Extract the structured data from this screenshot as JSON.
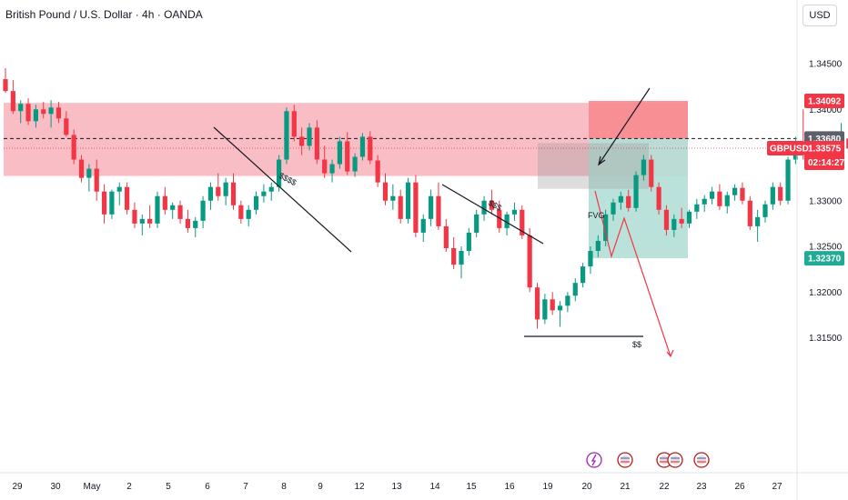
{
  "header": {
    "title": "British Pound / U.S. Dollar · 4h · OANDA",
    "currency": "USD"
  },
  "price_tags": {
    "symbol": "GBPUSD",
    "countdown": "02:14:27"
  },
  "chart_data": {
    "type": "candlestick",
    "symbol": "GBPUSD",
    "ylim": [
      1.315,
      1.347
    ],
    "y_ticks": [
      {
        "value": 1.345,
        "label": "1.34500"
      },
      {
        "value": 1.34,
        "label": "1.34000"
      },
      {
        "value": 1.33,
        "label": "1.33000"
      },
      {
        "value": 1.325,
        "label": "1.32500"
      },
      {
        "value": 1.32,
        "label": "1.32000"
      },
      {
        "value": 1.315,
        "label": "1.31500"
      }
    ],
    "x_ticks": [
      "29",
      "30",
      "May",
      "2",
      "5",
      "6",
      "7",
      "8",
      "9",
      "12",
      "13",
      "14",
      "15",
      "16",
      "19",
      "20",
      "21",
      "22",
      "23",
      "26",
      "27"
    ],
    "price_labels": [
      {
        "value": 1.34092,
        "label": "1.34092",
        "color": "#f23645"
      },
      {
        "value": 1.3368,
        "label": "1.33680",
        "color": "#5d606b"
      },
      {
        "value": 1.33575,
        "label": "1.33575",
        "color": "#f23645"
      },
      {
        "value": 1.3237,
        "label": "1.32370",
        "color": "#22ab94"
      }
    ],
    "zones": [
      {
        "kind": "supply",
        "y_top": 1.3407,
        "y_bottom": 1.3327,
        "color": "#f8b3bb"
      },
      {
        "kind": "short-stop",
        "y_top": 1.34092,
        "y_bottom": 1.3368,
        "color": "#f6898f"
      },
      {
        "kind": "short-target",
        "y_top": 1.3368,
        "y_bottom": 1.3237,
        "color": "#b2dfd6"
      }
    ],
    "annotations": [
      {
        "text": "$$$$",
        "x": 6.9,
        "y": 1.3359
      },
      {
        "text": "$$$",
        "x": 15.0,
        "y": 1.3336
      },
      {
        "text": "FVG",
        "x": 19.3,
        "y": 1.3333
      },
      {
        "text": "$$",
        "x": 20.3,
        "y": 1.3249
      }
    ],
    "candles": [
      [
        1.3433,
        1.3445,
        1.3418,
        1.342
      ],
      [
        1.342,
        1.3432,
        1.3395,
        1.3398
      ],
      [
        1.3398,
        1.341,
        1.3385,
        1.3406
      ],
      [
        1.3406,
        1.3412,
        1.3383,
        1.3387
      ],
      [
        1.3387,
        1.3405,
        1.338,
        1.34
      ],
      [
        1.34,
        1.3408,
        1.339,
        1.3395
      ],
      [
        1.3395,
        1.341,
        1.338,
        1.3402
      ],
      [
        1.3402,
        1.3408,
        1.3385,
        1.339
      ],
      [
        1.339,
        1.3398,
        1.337,
        1.3372
      ],
      [
        1.3372,
        1.3378,
        1.334,
        1.3345
      ],
      [
        1.3345,
        1.335,
        1.332,
        1.3325
      ],
      [
        1.3325,
        1.334,
        1.331,
        1.3335
      ],
      [
        1.3335,
        1.3345,
        1.33,
        1.331
      ],
      [
        1.331,
        1.3318,
        1.3275,
        1.3285
      ],
      [
        1.3285,
        1.3312,
        1.328,
        1.331
      ],
      [
        1.331,
        1.332,
        1.3295,
        1.3315
      ],
      [
        1.3315,
        1.332,
        1.3285,
        1.329
      ],
      [
        1.329,
        1.3298,
        1.327,
        1.3275
      ],
      [
        1.3275,
        1.3285,
        1.3262,
        1.328
      ],
      [
        1.328,
        1.3295,
        1.327,
        1.3275
      ],
      [
        1.3275,
        1.331,
        1.327,
        1.3305
      ],
      [
        1.3305,
        1.3315,
        1.3285,
        1.329
      ],
      [
        1.329,
        1.3298,
        1.328,
        1.3295
      ],
      [
        1.3295,
        1.33,
        1.3275,
        1.328
      ],
      [
        1.328,
        1.329,
        1.3265,
        1.327
      ],
      [
        1.327,
        1.3282,
        1.326,
        1.3278
      ],
      [
        1.3278,
        1.3305,
        1.327,
        1.33
      ],
      [
        1.33,
        1.332,
        1.329,
        1.3315
      ],
      [
        1.3315,
        1.333,
        1.33,
        1.3305
      ],
      [
        1.3305,
        1.3325,
        1.3295,
        1.332
      ],
      [
        1.332,
        1.333,
        1.329,
        1.3295
      ],
      [
        1.3295,
        1.33,
        1.3275,
        1.328
      ],
      [
        1.328,
        1.3295,
        1.3272,
        1.329
      ],
      [
        1.329,
        1.331,
        1.3285,
        1.3305
      ],
      [
        1.3305,
        1.3318,
        1.3298,
        1.331
      ],
      [
        1.331,
        1.332,
        1.33,
        1.3315
      ],
      [
        1.3315,
        1.335,
        1.331,
        1.3345
      ],
      [
        1.3345,
        1.3402,
        1.334,
        1.3398
      ],
      [
        1.3398,
        1.3405,
        1.3365,
        1.337
      ],
      [
        1.337,
        1.338,
        1.335,
        1.336
      ],
      [
        1.336,
        1.3385,
        1.3355,
        1.338
      ],
      [
        1.338,
        1.3388,
        1.334,
        1.3345
      ],
      [
        1.3345,
        1.336,
        1.3325,
        1.333
      ],
      [
        1.333,
        1.3345,
        1.332,
        1.334
      ],
      [
        1.334,
        1.337,
        1.3335,
        1.3365
      ],
      [
        1.3365,
        1.3375,
        1.3328,
        1.3332
      ],
      [
        1.3332,
        1.3352,
        1.3326,
        1.3348
      ],
      [
        1.3348,
        1.3374,
        1.3344,
        1.337
      ],
      [
        1.337,
        1.3376,
        1.334,
        1.3344
      ],
      [
        1.3344,
        1.335,
        1.3315,
        1.332
      ],
      [
        1.332,
        1.333,
        1.3295,
        1.33
      ],
      [
        1.33,
        1.3318,
        1.329,
        1.3305
      ],
      [
        1.3305,
        1.3312,
        1.3275,
        1.328
      ],
      [
        1.328,
        1.3325,
        1.3275,
        1.332
      ],
      [
        1.332,
        1.3328,
        1.326,
        1.3265
      ],
      [
        1.3265,
        1.3285,
        1.3255,
        1.328
      ],
      [
        1.328,
        1.3312,
        1.3272,
        1.3305
      ],
      [
        1.3305,
        1.332,
        1.3268,
        1.3272
      ],
      [
        1.3272,
        1.328,
        1.3244,
        1.3248
      ],
      [
        1.3248,
        1.326,
        1.3225,
        1.323
      ],
      [
        1.323,
        1.325,
        1.3215,
        1.3245
      ],
      [
        1.3245,
        1.327,
        1.324,
        1.3265
      ],
      [
        1.3265,
        1.329,
        1.326,
        1.3285
      ],
      [
        1.3285,
        1.3305,
        1.3278,
        1.33
      ],
      [
        1.33,
        1.3312,
        1.3285,
        1.329
      ],
      [
        1.329,
        1.33,
        1.3265,
        1.327
      ],
      [
        1.327,
        1.3288,
        1.3262,
        1.3285
      ],
      [
        1.3285,
        1.3298,
        1.3278,
        1.329
      ],
      [
        1.329,
        1.3295,
        1.3258,
        1.3262
      ],
      [
        1.3262,
        1.327,
        1.32,
        1.3205
      ],
      [
        1.3205,
        1.321,
        1.316,
        1.317
      ],
      [
        1.317,
        1.3198,
        1.3165,
        1.3192
      ],
      [
        1.3192,
        1.32,
        1.3175,
        1.318
      ],
      [
        1.318,
        1.319,
        1.3162,
        1.3185
      ],
      [
        1.3185,
        1.32,
        1.3178,
        1.3196
      ],
      [
        1.3196,
        1.3215,
        1.319,
        1.321
      ],
      [
        1.321,
        1.3232,
        1.3205,
        1.3228
      ],
      [
        1.3228,
        1.325,
        1.322,
        1.3245
      ],
      [
        1.3245,
        1.3262,
        1.3238,
        1.3256
      ],
      [
        1.3256,
        1.329,
        1.325,
        1.3285
      ],
      [
        1.3285,
        1.3302,
        1.3278,
        1.3298
      ],
      [
        1.3298,
        1.331,
        1.329,
        1.3305
      ],
      [
        1.3305,
        1.3312,
        1.3288,
        1.3292
      ],
      [
        1.3292,
        1.3332,
        1.3288,
        1.3328
      ],
      [
        1.3328,
        1.335,
        1.3322,
        1.3345
      ],
      [
        1.3345,
        1.335,
        1.331,
        1.3315
      ],
      [
        1.3315,
        1.332,
        1.3285,
        1.329
      ],
      [
        1.329,
        1.3295,
        1.3262,
        1.3268
      ],
      [
        1.3268,
        1.3285,
        1.326,
        1.328
      ],
      [
        1.328,
        1.3292,
        1.327,
        1.3275
      ],
      [
        1.3275,
        1.329,
        1.327,
        1.3288
      ],
      [
        1.3288,
        1.3302,
        1.328,
        1.3296
      ],
      [
        1.3296,
        1.3306,
        1.3288,
        1.3302
      ],
      [
        1.3302,
        1.3315,
        1.3296,
        1.331
      ],
      [
        1.331,
        1.3318,
        1.329,
        1.3294
      ],
      [
        1.3294,
        1.331,
        1.3286,
        1.3306
      ],
      [
        1.3306,
        1.3318,
        1.33,
        1.3314
      ],
      [
        1.3314,
        1.332,
        1.3296,
        1.33
      ],
      [
        1.33,
        1.3305,
        1.3268,
        1.3272
      ],
      [
        1.3272,
        1.329,
        1.3255,
        1.3282
      ],
      [
        1.3282,
        1.33,
        1.3276,
        1.3296
      ],
      [
        1.3296,
        1.332,
        1.329,
        1.3315
      ],
      [
        1.3315,
        1.332,
        1.3295,
        1.33
      ],
      [
        1.33,
        1.3348,
        1.3296,
        1.3345
      ],
      [
        1.3345,
        1.337,
        1.334,
        1.3365
      ],
      [
        1.3365,
        1.34,
        1.3345,
        1.335
      ],
      [
        1.335,
        1.336,
        1.334,
        1.3356
      ],
      [
        1.3356,
        1.3362,
        1.334,
        1.3346
      ],
      [
        1.3346,
        1.3366,
        1.334,
        1.3352
      ],
      [
        1.3352,
        1.337,
        1.3346,
        1.3364
      ],
      [
        1.3364,
        1.3385,
        1.335,
        1.3368
      ],
      [
        1.3368,
        1.3375,
        1.3352,
        1.3357
      ]
    ]
  }
}
